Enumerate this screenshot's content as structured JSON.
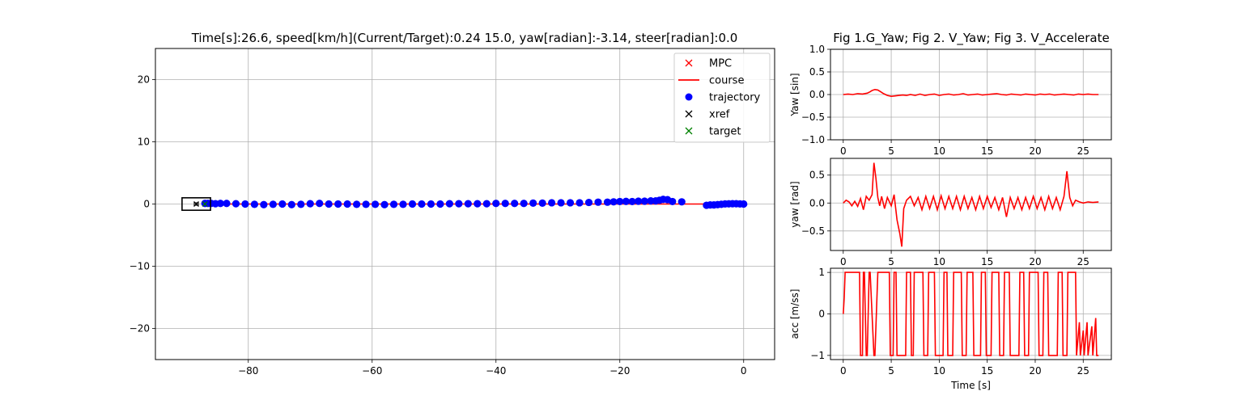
{
  "main_title": "Time[s]:26.6, speed[km/h](Current/Target):0.24 15.0, yaw[radian]:-3.14, steer[radian]:0.0",
  "side_title": "Fig 1.G_Yaw; Fig 2. V_Yaw; Fig 3. V_Accelerate",
  "colors": {
    "trajectory": "#0000ff",
    "course": "#ff0000",
    "mpc": "#ff0000",
    "xref": "#000000",
    "target": "#008000",
    "grid": "#b0b0b0",
    "axes": "#000000"
  },
  "legend": [
    {
      "label": "MPC",
      "marker": "x",
      "color": "#ff0000"
    },
    {
      "label": "course",
      "marker": "line",
      "color": "#ff0000"
    },
    {
      "label": "trajectory",
      "marker": "dot",
      "color": "#0000ff"
    },
    {
      "label": "xref",
      "marker": "x",
      "color": "#000000"
    },
    {
      "label": "target",
      "marker": "x",
      "color": "#008000"
    }
  ],
  "chart_data": [
    {
      "id": "main",
      "type": "scatter",
      "grid": true,
      "legend_position": "top-right",
      "xlim": [
        -95,
        5
      ],
      "ylim": [
        -25,
        25
      ],
      "xticks": [
        -80,
        -60,
        -40,
        -20,
        0
      ],
      "yticks": [
        -20,
        -10,
        0,
        10,
        20
      ],
      "xtick_labels": [
        "−80",
        "−60",
        "−40",
        "−20",
        "0"
      ],
      "ytick_labels": [
        "−20",
        "−10",
        "0",
        "10",
        "20"
      ],
      "course": {
        "x": [
          -87,
          0
        ],
        "y": [
          0,
          0
        ]
      },
      "trajectory": {
        "x": [
          0.0,
          -0.6,
          -1.2,
          -1.8,
          -2.4,
          -3.0,
          -3.6,
          -4.2,
          -4.8,
          -5.4,
          -6.0,
          -10.0,
          -11.5,
          -12.3,
          -13.0,
          -13.6,
          -14.2,
          -15.0,
          -16.0,
          -17.0,
          -18.0,
          -19.0,
          -20.0,
          -21.0,
          -22.0,
          -23.5,
          -25.0,
          -26.5,
          -28.0,
          -29.5,
          -31.0,
          -32.5,
          -34.0,
          -35.5,
          -37.0,
          -38.5,
          -40.0,
          -41.5,
          -43.0,
          -44.5,
          -46.0,
          -47.5,
          -49.0,
          -50.5,
          -52.0,
          -53.5,
          -55.0,
          -56.5,
          -58.0,
          -59.5,
          -61.0,
          -62.5,
          -64.0,
          -65.5,
          -67.0,
          -68.5,
          -70.0,
          -71.5,
          -73.0,
          -74.5,
          -76.0,
          -77.5,
          -79.0,
          -80.5,
          -82.0,
          -83.5,
          -84.5,
          -85.3,
          -86.0,
          -86.5,
          -87.0
        ],
        "y": [
          0.0,
          0.02,
          0.05,
          0.05,
          0.03,
          0.02,
          -0.05,
          -0.1,
          -0.15,
          -0.15,
          -0.2,
          0.35,
          0.4,
          0.7,
          0.75,
          0.6,
          0.5,
          0.5,
          0.45,
          0.45,
          0.4,
          0.42,
          0.4,
          0.35,
          0.3,
          0.3,
          0.25,
          0.2,
          0.2,
          0.2,
          0.2,
          0.15,
          0.15,
          0.1,
          0.1,
          0.1,
          0.1,
          0.05,
          0.05,
          0.05,
          0.05,
          0.05,
          0.0,
          0.0,
          0.0,
          0.0,
          -0.05,
          -0.05,
          -0.1,
          -0.05,
          -0.05,
          -0.05,
          0.0,
          0.0,
          0.0,
          0.1,
          0.05,
          -0.05,
          -0.1,
          0.0,
          -0.05,
          -0.1,
          -0.05,
          0.0,
          0.05,
          0.1,
          0.1,
          0.05,
          0.1,
          0.1,
          0.1
        ]
      },
      "vehicle": {
        "x": -88.4,
        "y": 0.0,
        "length": 4.6,
        "width": 2.0,
        "heading": "-3.14"
      },
      "xref": {
        "x": -88.4,
        "y": 0.0
      },
      "target": {
        "x": -87.0,
        "y": 0.0
      }
    },
    {
      "id": "g_yaw",
      "type": "line",
      "ylabel": "Yaw [sin]",
      "grid": true,
      "xlim": [
        -1.33,
        27.93
      ],
      "ylim": [
        -1.0,
        1.0
      ],
      "xticks": [
        0,
        5,
        10,
        15,
        20,
        25
      ],
      "yticks": [
        -1.0,
        -0.5,
        0.0,
        0.5,
        1.0
      ],
      "xtick_labels": [
        "0",
        "5",
        "10",
        "15",
        "20",
        "25"
      ],
      "ytick_labels": [
        "−1.0",
        "−0.5",
        "0.0",
        "0.5",
        "1.0"
      ],
      "series": [
        {
          "x": [
            0,
            0.5,
            1,
            1.5,
            2,
            2.5,
            2.8,
            3.0,
            3.3,
            3.6,
            3.9,
            4.2,
            4.6,
            5.0,
            5.4,
            5.8,
            6.2,
            6.6,
            7.0,
            7.5,
            8,
            8.5,
            9,
            9.5,
            10,
            10.5,
            11,
            11.5,
            12,
            12.5,
            13,
            13.5,
            14,
            14.5,
            15,
            15.5,
            16,
            16.5,
            17,
            17.5,
            18,
            18.5,
            19,
            19.5,
            20,
            20.5,
            21,
            21.5,
            22,
            22.5,
            23,
            23.5,
            24,
            24.5,
            25,
            25.5,
            26,
            26.6
          ],
          "y": [
            0,
            0.01,
            0.0,
            0.02,
            0.01,
            0.03,
            0.06,
            0.09,
            0.11,
            0.1,
            0.06,
            0.02,
            -0.02,
            -0.04,
            -0.03,
            -0.02,
            -0.01,
            -0.02,
            0.0,
            -0.02,
            0.01,
            -0.02,
            0.0,
            0.01,
            -0.02,
            0.0,
            0.01,
            -0.01,
            0.0,
            0.02,
            -0.01,
            0.0,
            0.01,
            -0.01,
            0.0,
            0.01,
            0.02,
            0.0,
            -0.01,
            0.01,
            0.0,
            -0.01,
            0.01,
            0.0,
            -0.01,
            0.01,
            0.0,
            0.01,
            -0.01,
            0.0,
            0.01,
            0.0,
            -0.01,
            0.01,
            0.0,
            0.01,
            0.0,
            0.0
          ]
        }
      ]
    },
    {
      "id": "v_yaw",
      "type": "line",
      "ylabel": "yaw [rad]",
      "grid": true,
      "xlim": [
        -1.33,
        27.93
      ],
      "ylim": [
        -0.85,
        0.8
      ],
      "xticks": [
        0,
        5,
        10,
        15,
        20,
        25
      ],
      "yticks": [
        -0.5,
        0.0,
        0.5
      ],
      "xtick_labels": [
        "0",
        "5",
        "10",
        "15",
        "20",
        "25"
      ],
      "ytick_labels": [
        "−0.5",
        "0.0",
        "0.5"
      ],
      "series": [
        {
          "x": [
            0,
            0.3,
            0.6,
            0.9,
            1.2,
            1.5,
            1.8,
            2.1,
            2.4,
            2.7,
            3.0,
            3.2,
            3.4,
            3.6,
            3.8,
            4.0,
            4.3,
            4.6,
            5.0,
            5.3,
            5.6,
            5.9,
            6.1,
            6.3,
            6.6,
            7.0,
            7.4,
            7.8,
            8.2,
            8.6,
            9.0,
            9.4,
            9.8,
            10.2,
            10.6,
            11.0,
            11.4,
            11.8,
            12.2,
            12.6,
            13.0,
            13.4,
            13.8,
            14.2,
            14.6,
            15.0,
            15.4,
            15.8,
            16.2,
            16.6,
            17.0,
            17.4,
            17.8,
            18.2,
            18.6,
            19.0,
            19.4,
            19.8,
            20.2,
            20.6,
            21.0,
            21.4,
            21.8,
            22.2,
            22.6,
            23.0,
            23.3,
            23.6,
            23.9,
            24.2,
            24.6,
            25.0,
            25.5,
            26.0,
            26.6
          ],
          "y": [
            0,
            0.05,
            0.02,
            -0.05,
            0.03,
            -0.06,
            0.08,
            -0.12,
            0.12,
            0.05,
            0.15,
            0.72,
            0.45,
            0.1,
            -0.05,
            0.12,
            -0.1,
            0.1,
            -0.05,
            0.15,
            -0.3,
            -0.55,
            -0.78,
            -0.1,
            0.05,
            0.12,
            -0.05,
            0.1,
            -0.12,
            0.12,
            -0.1,
            0.12,
            -0.12,
            0.13,
            -0.1,
            0.12,
            -0.1,
            0.12,
            -0.12,
            0.12,
            -0.1,
            0.1,
            -0.12,
            0.12,
            -0.1,
            0.12,
            -0.08,
            0.1,
            -0.12,
            0.1,
            -0.25,
            0.1,
            -0.1,
            0.1,
            -0.12,
            0.1,
            -0.1,
            0.12,
            -0.1,
            0.1,
            -0.12,
            0.12,
            -0.1,
            0.1,
            -0.12,
            0.12,
            0.57,
            0.1,
            -0.05,
            0.05,
            0.02,
            0.0,
            0.02,
            0.01,
            0.02
          ]
        }
      ]
    },
    {
      "id": "v_acc",
      "type": "line",
      "ylabel": "acc [m/ss]",
      "xlabel": "Time [s]",
      "grid": true,
      "xlim": [
        -1.33,
        27.93
      ],
      "ylim": [
        -1.1,
        1.1
      ],
      "xticks": [
        0,
        5,
        10,
        15,
        20,
        25
      ],
      "yticks": [
        -1,
        0,
        1
      ],
      "xtick_labels": [
        "0",
        "5",
        "10",
        "15",
        "20",
        "25"
      ],
      "ytick_labels": [
        "−1",
        "0",
        "1"
      ],
      "series": [
        {
          "x": [
            0,
            0.1,
            0.2,
            1.7,
            1.8,
            2.0,
            2.1,
            2.2,
            2.4,
            2.5,
            2.7,
            2.8,
            3.2,
            3.3,
            3.6,
            3.7,
            4.8,
            4.9,
            5.2,
            5.3,
            5.5,
            5.6,
            6.5,
            6.6,
            7.0,
            7.1,
            7.3,
            7.4,
            8.3,
            8.4,
            8.8,
            8.9,
            9.5,
            9.6,
            10.4,
            10.5,
            10.8,
            10.9,
            11.4,
            11.5,
            12.3,
            12.4,
            12.8,
            12.9,
            13.5,
            13.6,
            14.3,
            14.4,
            14.8,
            14.9,
            15.4,
            15.5,
            16.2,
            16.3,
            16.7,
            16.8,
            17.3,
            17.4,
            18.3,
            18.4,
            18.8,
            18.9,
            19.3,
            19.4,
            20.3,
            20.4,
            20.8,
            20.9,
            21.3,
            21.4,
            22.3,
            22.4,
            22.8,
            22.9,
            23.3,
            23.4,
            24.2,
            24.3,
            24.6,
            24.7,
            25.0,
            25.1,
            25.4,
            25.5,
            25.9,
            26.0,
            26.3,
            26.4,
            26.6
          ],
          "y": [
            0,
            0.4,
            1,
            1,
            -1,
            -1,
            1,
            1,
            -1,
            -1,
            1,
            1,
            -1,
            -1,
            1,
            1,
            1,
            -1,
            -1,
            1,
            1,
            -1,
            -1,
            1,
            1,
            -1,
            -1,
            1,
            1,
            -1,
            -1,
            1,
            1,
            -1,
            -1,
            1,
            1,
            -1,
            -1,
            1,
            1,
            -1,
            -1,
            1,
            1,
            -1,
            -1,
            1,
            1,
            -1,
            -1,
            1,
            1,
            -1,
            -1,
            1,
            1,
            -1,
            -1,
            1,
            1,
            -1,
            -1,
            1,
            1,
            -1,
            -1,
            1,
            1,
            -1,
            -1,
            1,
            1,
            -1,
            -1,
            1,
            1,
            -1,
            -0.2,
            -1,
            -0.4,
            -1,
            -0.2,
            -1,
            -0.3,
            -1,
            -0.1,
            -1,
            -1
          ]
        }
      ]
    }
  ]
}
